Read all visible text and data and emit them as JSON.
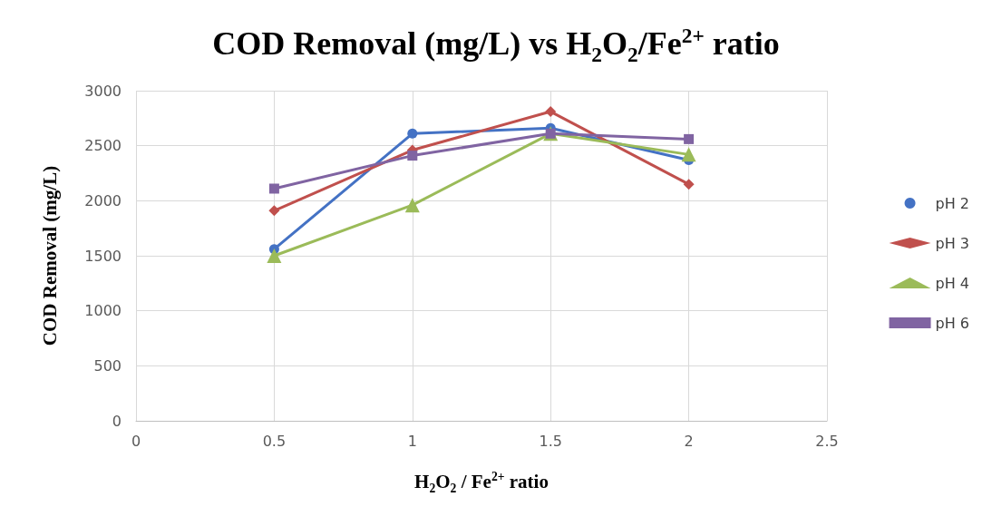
{
  "chart_data": {
    "type": "line",
    "title": "COD Removal (mg/L) vs H$_{2}$O$_{2}$/Fe$^{2+}$ ratio",
    "xlabel": "H$_{2}$O$_{2}$ / Fe$^{2+}$ ratio",
    "ylabel": "COD Removal (mg/L)",
    "x": [
      0.5,
      1,
      1.5,
      2
    ],
    "series": [
      {
        "name": "pH 2",
        "color": "#4472c4",
        "marker": "circle",
        "values": [
          1560,
          2610,
          2660,
          2370
        ]
      },
      {
        "name": "pH 3",
        "color": "#c0504d",
        "marker": "diamond",
        "values": [
          1910,
          2460,
          2810,
          2150
        ]
      },
      {
        "name": "pH 4",
        "color": "#9bbb59",
        "marker": "triangle",
        "values": [
          1500,
          1960,
          2610,
          2420
        ]
      },
      {
        "name": "pH 6",
        "color": "#8064a2",
        "marker": "square",
        "values": [
          2110,
          2410,
          2610,
          2560
        ]
      }
    ],
    "xlim": [
      0,
      2.5
    ],
    "xticks": [
      0,
      0.5,
      1,
      1.5,
      2,
      2.5
    ],
    "ylim": [
      0,
      3000
    ],
    "yticks": [
      0,
      500,
      1000,
      1500,
      2000,
      2500,
      3000
    ],
    "grid": true,
    "legend": "right",
    "line_style": "solid"
  }
}
